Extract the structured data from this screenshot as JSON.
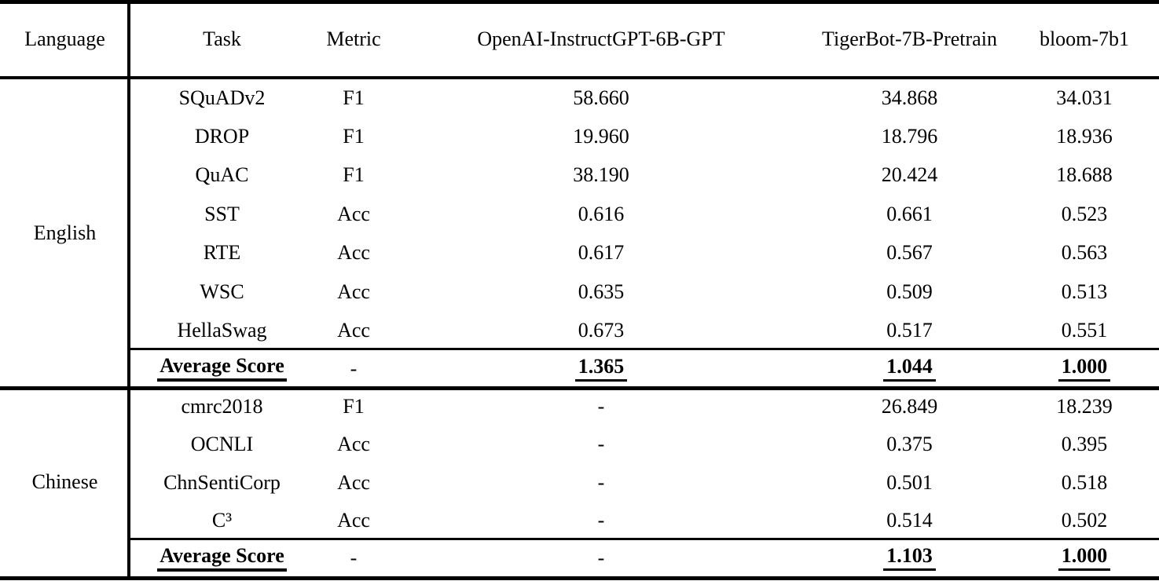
{
  "table": {
    "columns": [
      "Language",
      "Task",
      "Metric",
      "OpenAI-InstructGPT-6B-GPT",
      "TigerBot-7B-Pretrain",
      "bloom-7b1"
    ],
    "sections": [
      {
        "language": "English",
        "rows": [
          {
            "task": "SQuADv2",
            "metric": "F1",
            "values": [
              "58.660",
              "34.868",
              "34.031"
            ]
          },
          {
            "task": "DROP",
            "metric": "F1",
            "values": [
              "19.960",
              "18.796",
              "18.936"
            ]
          },
          {
            "task": "QuAC",
            "metric": "F1",
            "values": [
              "38.190",
              "20.424",
              "18.688"
            ]
          },
          {
            "task": "SST",
            "metric": "Acc",
            "values": [
              "0.616",
              "0.661",
              "0.523"
            ]
          },
          {
            "task": "RTE",
            "metric": "Acc",
            "values": [
              "0.617",
              "0.567",
              "0.563"
            ]
          },
          {
            "task": "WSC",
            "metric": "Acc",
            "values": [
              "0.635",
              "0.509",
              "0.513"
            ]
          },
          {
            "task": "HellaSwag",
            "metric": "Acc",
            "values": [
              "0.673",
              "0.517",
              "0.551"
            ]
          }
        ],
        "average": {
          "label": "Average Score",
          "metric": "-",
          "values": [
            "1.365",
            "1.044",
            "1.000"
          ]
        }
      },
      {
        "language": "Chinese",
        "rows": [
          {
            "task": "cmrc2018",
            "metric": "F1",
            "values": [
              "-",
              "26.849",
              "18.239"
            ]
          },
          {
            "task": "OCNLI",
            "metric": "Acc",
            "values": [
              "-",
              "0.375",
              "0.395"
            ]
          },
          {
            "task": "ChnSentiCorp",
            "metric": "Acc",
            "values": [
              "-",
              "0.501",
              "0.518"
            ]
          },
          {
            "task": "C³",
            "metric": "Acc",
            "values": [
              "-",
              "0.514",
              "0.502"
            ]
          }
        ],
        "average": {
          "label": "Average Score",
          "metric": "-",
          "values": [
            "-",
            "1.103",
            "1.000"
          ]
        }
      }
    ]
  }
}
